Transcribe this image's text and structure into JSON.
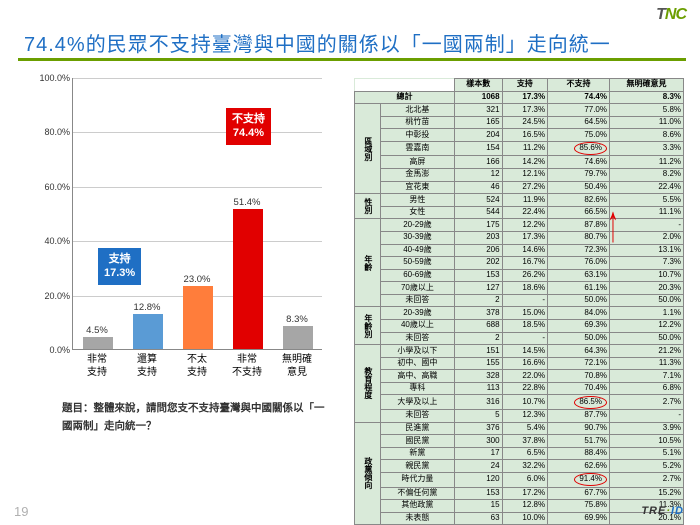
{
  "title_color": "#1f6fc4",
  "underline_color": "#6b9e00",
  "title": "74.4%的民眾不支持臺灣與中國的關係以「一國兩制」走向統一",
  "logo_text1": "T",
  "logo_text2": "NC",
  "page_number": "19",
  "chart": {
    "ylim": [
      0,
      100
    ],
    "ytick_step": 20,
    "y_format_suffix": "%",
    "categories": [
      "非常\n支持",
      "還算\n支持",
      "不太\n支持",
      "非常\n不支持",
      "無明確\n意見"
    ],
    "values": [
      4.5,
      12.8,
      23.0,
      51.4,
      8.3
    ],
    "value_labels": [
      "4.5%",
      "12.8%",
      "23.0%",
      "51.4%",
      "8.3%"
    ],
    "bar_colors": [
      "#a6a6a6",
      "#5a9bd5",
      "#ff7d3b",
      "#e10000",
      "#a6a6a6"
    ],
    "callout_support_title": "支持",
    "callout_support_value": "17.3%",
    "callout_oppose_title": "不支持",
    "callout_oppose_value": "74.4%"
  },
  "question": "題目：整體來說，請問您支不支持臺灣與中國關係以「一國兩制」走向統一？",
  "table": {
    "headers": [
      "",
      "",
      "樣本數",
      "支持",
      "不支持",
      "無明確意見"
    ],
    "totals_label": "總計",
    "totals": [
      "1068",
      "17.3%",
      "74.4%",
      "8.3%"
    ],
    "groups": [
      {
        "label": "區域別",
        "rows": [
          [
            "北北基",
            "321",
            "17.3%",
            "77.0%",
            "5.8%"
          ],
          [
            "桃竹苗",
            "165",
            "24.5%",
            "64.5%",
            "11.0%"
          ],
          [
            "中彰投",
            "204",
            "16.5%",
            "75.0%",
            "8.6%"
          ],
          [
            "雲嘉南",
            "154",
            "11.2%",
            "85.6%",
            "3.3%",
            true
          ],
          [
            "高屏",
            "166",
            "14.2%",
            "74.6%",
            "11.2%"
          ],
          [
            "金馬澎",
            "12",
            "12.1%",
            "79.7%",
            "8.2%"
          ],
          [
            "宜花東",
            "46",
            "27.2%",
            "50.4%",
            "22.4%"
          ]
        ]
      },
      {
        "label": "性別",
        "rows": [
          [
            "男性",
            "524",
            "11.9%",
            "82.6%",
            "5.5%"
          ],
          [
            "女性",
            "544",
            "22.4%",
            "66.5%",
            "11.1%"
          ]
        ]
      },
      {
        "label": "年齡",
        "rows": [
          [
            "20-29歲",
            "175",
            "12.2%",
            "87.8%",
            "-"
          ],
          [
            "30-39歲",
            "203",
            "17.3%",
            "80.7%",
            "2.0%"
          ],
          [
            "40-49歲",
            "206",
            "14.6%",
            "72.3%",
            "13.1%"
          ],
          [
            "50-59歲",
            "202",
            "16.7%",
            "76.0%",
            "7.3%"
          ],
          [
            "60-69歲",
            "153",
            "26.2%",
            "63.1%",
            "10.7%"
          ],
          [
            "70歲以上",
            "127",
            "18.6%",
            "61.1%",
            "20.3%"
          ],
          [
            "未回答",
            "2",
            "-",
            "50.0%",
            "50.0%"
          ]
        ]
      },
      {
        "label": "年齡別",
        "rows": [
          [
            "20-39歲",
            "378",
            "15.0%",
            "84.0%",
            "1.1%"
          ],
          [
            "40歲以上",
            "688",
            "18.5%",
            "69.3%",
            "12.2%"
          ],
          [
            "未回答",
            "2",
            "-",
            "50.0%",
            "50.0%"
          ]
        ]
      },
      {
        "label": "教育程度",
        "rows": [
          [
            "小學及以下",
            "151",
            "14.5%",
            "64.3%",
            "21.2%"
          ],
          [
            "初中、國中",
            "155",
            "16.6%",
            "72.1%",
            "11.3%"
          ],
          [
            "高中、高職",
            "328",
            "22.0%",
            "70.8%",
            "7.1%"
          ],
          [
            "專科",
            "113",
            "22.8%",
            "70.4%",
            "6.8%"
          ],
          [
            "大學及以上",
            "316",
            "10.7%",
            "86.5%",
            "2.7%",
            true
          ],
          [
            "未回答",
            "5",
            "12.3%",
            "87.7%",
            "-"
          ]
        ]
      },
      {
        "label": "政黨傾向",
        "rows": [
          [
            "民進黨",
            "376",
            "5.4%",
            "90.7%",
            "3.9%"
          ],
          [
            "國民黨",
            "300",
            "37.8%",
            "51.7%",
            "10.5%"
          ],
          [
            "新黨",
            "17",
            "6.5%",
            "88.4%",
            "5.1%"
          ],
          [
            "親民黨",
            "24",
            "32.2%",
            "62.6%",
            "5.2%"
          ],
          [
            "時代力量",
            "120",
            "6.0%",
            "91.4%",
            "2.7%",
            true
          ],
          [
            "不偏任何黨",
            "153",
            "17.2%",
            "67.7%",
            "15.2%"
          ],
          [
            "其他政黨",
            "15",
            "12.8%",
            "75.8%",
            "11.3%"
          ],
          [
            "未表態",
            "63",
            "10.0%",
            "69.9%",
            "20.1%"
          ]
        ]
      }
    ]
  },
  "bottom_logo": {
    "a": "TRE",
    "b": "·",
    "c": "ID"
  }
}
